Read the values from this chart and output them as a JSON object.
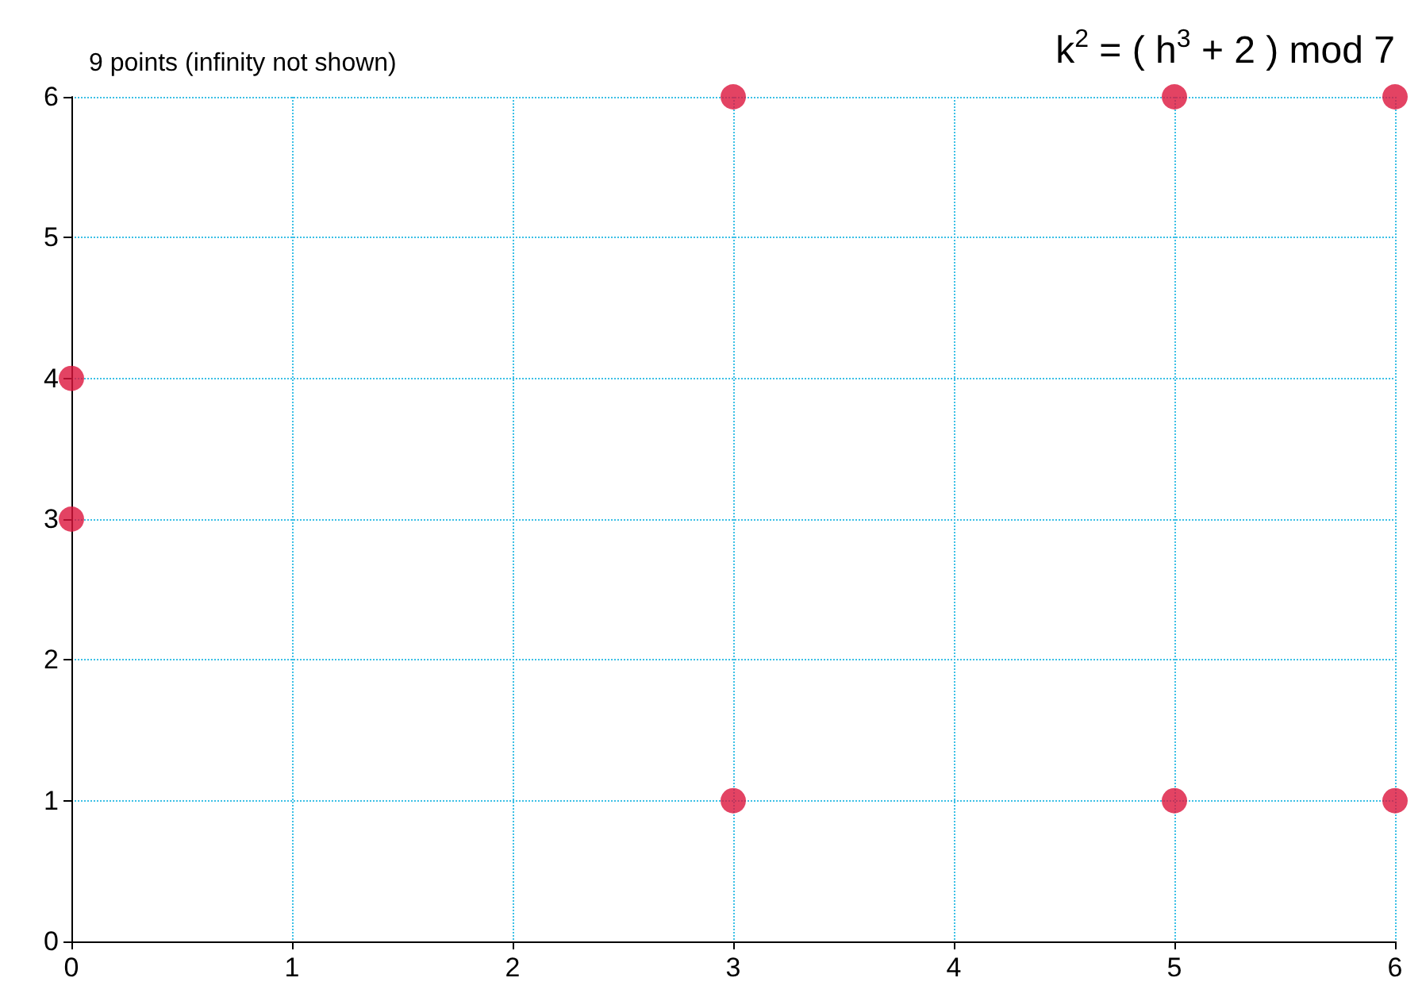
{
  "chart_data": {
    "type": "scatter",
    "title": "k$^{2}$ = ( h$^{3}$ + 2 ) mod 7",
    "annotations": [
      "9 points (infinity not shown)"
    ],
    "x": [
      0,
      0,
      3,
      3,
      5,
      5,
      6,
      6
    ],
    "values": [
      3,
      4,
      1,
      6,
      1,
      6,
      1,
      6
    ],
    "color": "#dc143c",
    "marker": "circle",
    "xlim": [
      0,
      6
    ],
    "xticks": [
      0,
      1,
      2,
      3,
      4,
      5,
      6
    ],
    "ylim": [
      0,
      6
    ],
    "yticks": [
      0,
      1,
      2,
      3,
      4,
      5,
      6
    ],
    "grid": true
  }
}
